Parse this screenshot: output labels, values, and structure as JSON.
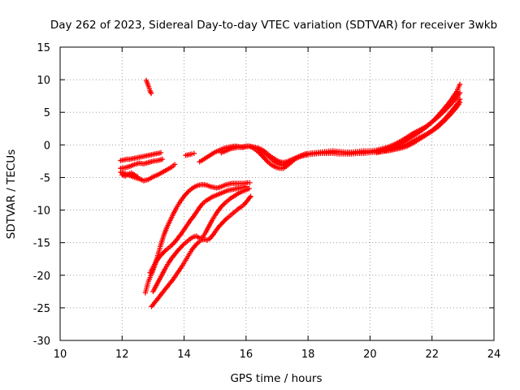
{
  "chart_data": {
    "type": "scatter",
    "title": "Day 262 of 2023, Sidereal Day-to-day VTEC variation (SDTVAR) for receiver 3wkb",
    "xlabel": "GPS time / hours",
    "ylabel": "SDTVAR / TECUs",
    "xlim": [
      10,
      24
    ],
    "ylim": [
      -30,
      15
    ],
    "xticks": [
      10,
      12,
      14,
      16,
      18,
      20,
      22,
      24
    ],
    "yticks": [
      -30,
      -25,
      -20,
      -15,
      -10,
      -5,
      0,
      5,
      10,
      15
    ],
    "grid": true,
    "marker": "+",
    "series_color": "#ff0000",
    "series": [
      {
        "x": [
          12.78,
          12.82,
          12.86,
          12.9,
          12.94
        ],
        "y": [
          9.9,
          9.4,
          8.9,
          8.3,
          7.9
        ]
      },
      {
        "x": [
          11.95,
          12.05,
          12.15,
          12.25,
          12.35,
          12.45,
          12.55,
          12.65,
          12.75,
          12.85,
          12.95,
          13.05,
          13.15,
          13.25
        ],
        "y": [
          -2.4,
          -2.3,
          -2.2,
          -2.2,
          -2.1,
          -2.0,
          -1.9,
          -1.8,
          -1.7,
          -1.6,
          -1.5,
          -1.4,
          -1.3,
          -1.2
        ]
      },
      {
        "x": [
          11.95,
          12.1,
          12.25,
          12.4,
          12.55,
          12.7,
          12.85,
          13.0,
          13.15,
          13.3
        ],
        "y": [
          -3.6,
          -3.5,
          -3.3,
          -3.0,
          -2.8,
          -2.9,
          -2.7,
          -2.5,
          -2.4,
          -2.2
        ]
      },
      {
        "x": [
          11.95,
          12.1,
          12.25,
          12.4,
          12.55,
          12.7,
          12.85,
          13.0,
          13.15,
          13.3,
          13.45,
          13.6,
          13.7
        ],
        "y": [
          -4.2,
          -4.4,
          -4.7,
          -5.0,
          -5.2,
          -5.5,
          -5.3,
          -4.9,
          -4.6,
          -4.2,
          -3.8,
          -3.4,
          -3.0
        ]
      },
      {
        "x": [
          12.0,
          12.1,
          12.2,
          12.3,
          12.4,
          12.5
        ],
        "y": [
          -4.6,
          -4.8,
          -4.5,
          -4.3,
          -4.6,
          -4.9
        ]
      },
      {
        "x": [
          14.05,
          14.15,
          14.25,
          14.32
        ],
        "y": [
          -1.6,
          -1.5,
          -1.4,
          -1.3
        ]
      },
      {
        "x": [
          14.5,
          14.6,
          14.7,
          14.8,
          14.9,
          15.0,
          15.1,
          15.2,
          15.3,
          15.4,
          15.5,
          15.6,
          15.7,
          15.8,
          15.9,
          16.0,
          16.1,
          16.2,
          16.3,
          16.4,
          16.5,
          16.6,
          16.7,
          16.8,
          16.9,
          17.0,
          17.1,
          17.2,
          17.3,
          17.4,
          17.5,
          17.6,
          17.7,
          17.8,
          17.9,
          18.0,
          18.2,
          18.4,
          18.6,
          18.8,
          19.0,
          19.2,
          19.4,
          19.6,
          19.8,
          20.0,
          20.2,
          20.4,
          20.6,
          20.8,
          21.0,
          21.2,
          21.4,
          21.6,
          21.8,
          22.0,
          22.2,
          22.4,
          22.6,
          22.8,
          22.9
        ],
        "y": [
          -2.6,
          -2.3,
          -2.0,
          -1.7,
          -1.4,
          -1.1,
          -0.9,
          -0.7,
          -0.5,
          -0.4,
          -0.3,
          -0.2,
          -0.2,
          -0.3,
          -0.4,
          -0.3,
          -0.2,
          -0.3,
          -0.4,
          -0.5,
          -0.7,
          -1.0,
          -1.4,
          -1.8,
          -2.1,
          -2.4,
          -2.6,
          -2.7,
          -2.6,
          -2.4,
          -2.2,
          -2.0,
          -1.8,
          -1.6,
          -1.4,
          -1.3,
          -1.2,
          -1.1,
          -1.0,
          -0.9,
          -1.0,
          -1.1,
          -1.1,
          -1.0,
          -0.9,
          -0.9,
          -0.8,
          -0.6,
          -0.3,
          0.1,
          0.6,
          1.2,
          1.8,
          2.3,
          2.8,
          3.5,
          4.3,
          5.2,
          6.2,
          7.3,
          8.0
        ]
      },
      {
        "x": [
          15.2,
          15.3,
          15.4,
          15.5,
          15.6,
          15.7,
          15.8,
          15.9,
          16.0,
          16.1,
          16.2,
          16.3,
          16.4,
          16.5,
          16.6,
          16.7,
          16.8,
          16.9,
          17.0,
          17.1,
          17.2,
          17.3,
          17.4,
          17.5,
          17.6,
          17.8,
          18.0,
          18.2,
          18.4,
          18.6,
          18.8,
          19.0,
          19.2,
          19.4,
          19.6,
          19.8,
          20.0,
          20.2,
          20.4,
          20.6,
          20.8,
          21.0,
          21.2,
          21.4,
          21.6,
          21.8,
          22.0,
          22.2,
          22.4,
          22.6,
          22.8,
          22.9
        ],
        "y": [
          -1.2,
          -1.0,
          -0.8,
          -0.6,
          -0.5,
          -0.4,
          -0.3,
          -0.3,
          -0.2,
          -0.2,
          -0.3,
          -0.4,
          -0.6,
          -0.9,
          -1.3,
          -1.7,
          -2.1,
          -2.5,
          -2.8,
          -3.0,
          -3.1,
          -2.9,
          -2.6,
          -2.3,
          -2.0,
          -1.6,
          -1.4,
          -1.3,
          -1.2,
          -1.2,
          -1.1,
          -1.1,
          -1.2,
          -1.2,
          -1.2,
          -1.1,
          -1.1,
          -1.0,
          -0.8,
          -0.6,
          -0.3,
          0.2,
          0.8,
          1.4,
          2.0,
          2.7,
          3.5,
          4.5,
          5.6,
          6.8,
          8.2,
          9.3
        ]
      },
      {
        "x": [
          15.8,
          15.9,
          16.0,
          16.1,
          16.2,
          16.3,
          16.4,
          16.5,
          16.6,
          16.7,
          16.8,
          16.9,
          17.0,
          17.1,
          17.2,
          17.3,
          17.4,
          17.5,
          17.6,
          17.8,
          18.0,
          18.2,
          18.4,
          18.6,
          18.8,
          19.0,
          19.2,
          19.4,
          19.6,
          19.8,
          20.0,
          20.2,
          20.4,
          20.6,
          20.8,
          21.0,
          21.2,
          21.4,
          21.6,
          21.8,
          22.0,
          22.2,
          22.4,
          22.6,
          22.8,
          22.9
        ],
        "y": [
          -0.4,
          -0.3,
          -0.2,
          -0.2,
          -0.4,
          -0.7,
          -1.1,
          -1.6,
          -2.1,
          -2.6,
          -3.0,
          -3.3,
          -3.5,
          -3.6,
          -3.6,
          -3.3,
          -2.9,
          -2.5,
          -2.1,
          -1.7,
          -1.5,
          -1.4,
          -1.3,
          -1.3,
          -1.3,
          -1.4,
          -1.4,
          -1.4,
          -1.3,
          -1.3,
          -1.2,
          -1.1,
          -1.0,
          -0.8,
          -0.6,
          -0.3,
          0.1,
          0.6,
          1.1,
          1.6,
          2.2,
          3.0,
          3.9,
          5.0,
          6.2,
          7.0
        ]
      },
      {
        "x": [
          20.2,
          20.4,
          20.6,
          20.8,
          21.0,
          21.2,
          21.4,
          21.6,
          21.8,
          22.0,
          22.2,
          22.4,
          22.6,
          22.8,
          22.9
        ],
        "y": [
          -1.2,
          -1.0,
          -0.9,
          -0.7,
          -0.5,
          -0.2,
          0.3,
          0.9,
          1.5,
          2.1,
          2.8,
          3.7,
          4.7,
          5.8,
          6.5
        ]
      },
      {
        "x": [
          12.75,
          12.8,
          12.85,
          12.95,
          13.05,
          13.15,
          13.25,
          13.35,
          13.45,
          13.55,
          13.65,
          13.75,
          13.85,
          13.95,
          14.05,
          14.15,
          14.25,
          14.35,
          14.45,
          14.55,
          14.65,
          14.75,
          14.85,
          14.95,
          15.05,
          15.15,
          15.25,
          15.35,
          15.45,
          15.55,
          15.65,
          15.75,
          15.85,
          15.95,
          16.05,
          16.12
        ],
        "y": [
          -22.7,
          -21.8,
          -20.9,
          -19.8,
          -18.6,
          -17.0,
          -15.3,
          -13.8,
          -12.6,
          -11.6,
          -10.6,
          -9.7,
          -8.9,
          -8.2,
          -7.6,
          -7.1,
          -6.7,
          -6.4,
          -6.2,
          -6.1,
          -6.1,
          -6.2,
          -6.4,
          -6.5,
          -6.6,
          -6.5,
          -6.3,
          -6.1,
          -6.0,
          -5.9,
          -5.9,
          -5.9,
          -5.9,
          -5.9,
          -5.8,
          -5.8
        ]
      },
      {
        "x": [
          12.9,
          13.0,
          13.1,
          13.2,
          13.3,
          13.4,
          13.5,
          13.6,
          13.7,
          13.8,
          13.9,
          14.0,
          14.1,
          14.2,
          14.3,
          14.4,
          14.5,
          14.6,
          14.7,
          14.8,
          14.9,
          15.0,
          15.1,
          15.2,
          15.3,
          15.4,
          15.5,
          15.6,
          15.7,
          15.8,
          15.9,
          16.0
        ],
        "y": [
          -19.6,
          -18.8,
          -17.9,
          -17.2,
          -16.7,
          -16.2,
          -15.8,
          -15.4,
          -14.9,
          -14.3,
          -13.7,
          -13.0,
          -12.3,
          -11.6,
          -11.0,
          -10.3,
          -9.6,
          -9.0,
          -8.6,
          -8.3,
          -8.0,
          -7.8,
          -7.6,
          -7.4,
          -7.2,
          -7.0,
          -6.9,
          -6.8,
          -6.7,
          -6.6,
          -6.5,
          -6.4
        ]
      },
      {
        "x": [
          13.0,
          13.1,
          13.2,
          13.3,
          13.4,
          13.5,
          13.6,
          13.7,
          13.8,
          13.9,
          14.0,
          14.1,
          14.2,
          14.3,
          14.4,
          14.5,
          14.6,
          14.7,
          14.8,
          14.9,
          15.0,
          15.1,
          15.2,
          15.3,
          15.4,
          15.5,
          15.6,
          15.7,
          15.8,
          15.9,
          16.0,
          16.1
        ],
        "y": [
          -22.5,
          -21.6,
          -20.7,
          -19.8,
          -18.9,
          -18.1,
          -17.4,
          -16.8,
          -16.2,
          -15.7,
          -15.2,
          -14.8,
          -14.4,
          -14.1,
          -14.0,
          -14.3,
          -14.2,
          -13.4,
          -12.5,
          -11.6,
          -10.8,
          -10.1,
          -9.5,
          -9.0,
          -8.6,
          -8.2,
          -7.9,
          -7.6,
          -7.3,
          -7.1,
          -6.9,
          -6.7
        ]
      },
      {
        "x": [
          12.95,
          13.05,
          13.15,
          13.25,
          13.35,
          13.45,
          13.55,
          13.65,
          13.75,
          13.85,
          13.95,
          14.05,
          14.15,
          14.25,
          14.35,
          14.45,
          14.55,
          14.65,
          14.75,
          14.85,
          14.95,
          15.05,
          15.15,
          15.25,
          15.35,
          15.45,
          15.55,
          15.65,
          15.75,
          15.85,
          15.95,
          16.05,
          16.15
        ],
        "y": [
          -24.8,
          -24.2,
          -23.6,
          -23.0,
          -22.4,
          -21.8,
          -21.2,
          -20.6,
          -19.9,
          -19.2,
          -18.5,
          -17.7,
          -16.9,
          -16.1,
          -15.5,
          -15.0,
          -14.6,
          -14.5,
          -14.6,
          -14.3,
          -13.7,
          -13.0,
          -12.4,
          -11.9,
          -11.4,
          -11.0,
          -10.6,
          -10.2,
          -9.8,
          -9.5,
          -9.1,
          -8.5,
          -7.9
        ]
      }
    ]
  }
}
